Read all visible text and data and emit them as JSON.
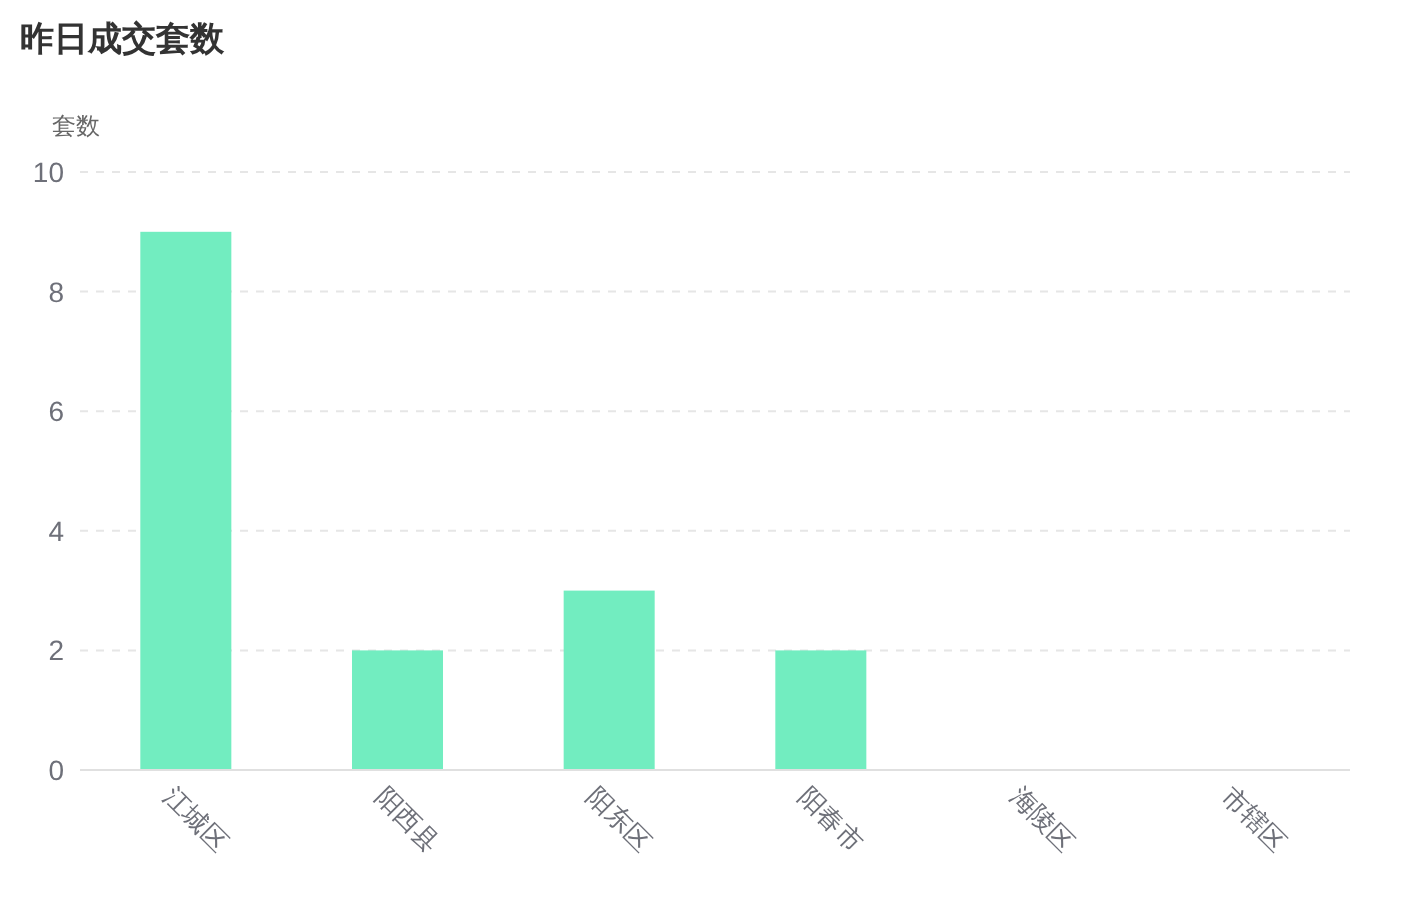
{
  "chart_data": {
    "type": "bar",
    "title": "昨日成交套数",
    "ylabel": "套数",
    "categories": [
      "江城区",
      "阳西县",
      "阳东区",
      "阳春市",
      "海陵区",
      "市辖区"
    ],
    "values": [
      9,
      2,
      3,
      2,
      0,
      0
    ],
    "color": "#72edc0",
    "ylim": [
      0,
      10
    ],
    "yticks": [
      0,
      2,
      4,
      6,
      8,
      10
    ],
    "grid": "y"
  }
}
